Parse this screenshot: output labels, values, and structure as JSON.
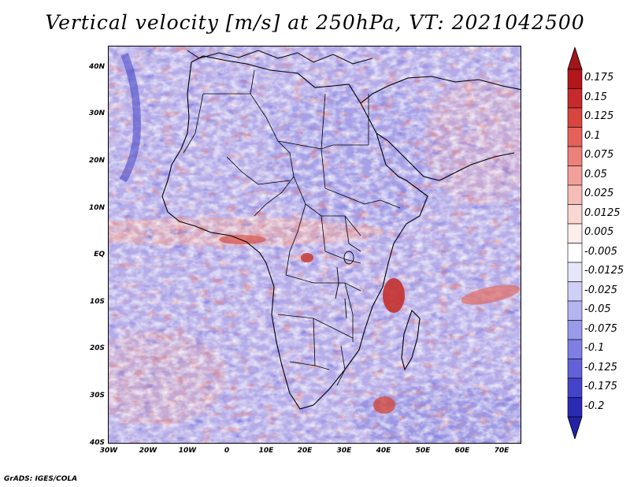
{
  "title": "Vertical velocity [m/s] at 250hPa, VT: 2021042500",
  "map": {
    "region": "Africa",
    "lat_ticks": [
      "40N",
      "30N",
      "20N",
      "10N",
      "EQ",
      "10S",
      "20S",
      "30S",
      "40S"
    ],
    "lon_ticks": [
      "30W",
      "20W",
      "10W",
      "0",
      "10E",
      "20E",
      "30E",
      "40E",
      "50E",
      "60E",
      "70E"
    ]
  },
  "colorbar": {
    "levels": [
      {
        "label": "0.175",
        "color": "#b3161c"
      },
      {
        "label": "0.15",
        "color": "#c62a2c"
      },
      {
        "label": "0.125",
        "color": "#d8443e"
      },
      {
        "label": "0.1",
        "color": "#e4615a"
      },
      {
        "label": "0.075",
        "color": "#ec817a"
      },
      {
        "label": "0.05",
        "color": "#f2a099"
      },
      {
        "label": "0.025",
        "color": "#f6bdb7"
      },
      {
        "label": "0.0125",
        "color": "#fad7d3"
      },
      {
        "label": "0.005",
        "color": "#fdeeec"
      },
      {
        "label": "-0.005",
        "color": "#ffffff"
      },
      {
        "label": "-0.0125",
        "color": "#e6e6fb"
      },
      {
        "label": "-0.025",
        "color": "#cfcff7"
      },
      {
        "label": "-0.05",
        "color": "#b5b5f1"
      },
      {
        "label": "-0.075",
        "color": "#9a9aeb"
      },
      {
        "label": "-0.1",
        "color": "#7f7fe3"
      },
      {
        "label": "-0.125",
        "color": "#6161d9"
      },
      {
        "label": "-0.175",
        "color": "#4444cb"
      },
      {
        "label": "-0.2",
        "color": "#2a2ab3"
      }
    ],
    "max_color": "#a0161a",
    "min_color": "#2222a8"
  },
  "credit": "GrADS: IGES/COLA"
}
